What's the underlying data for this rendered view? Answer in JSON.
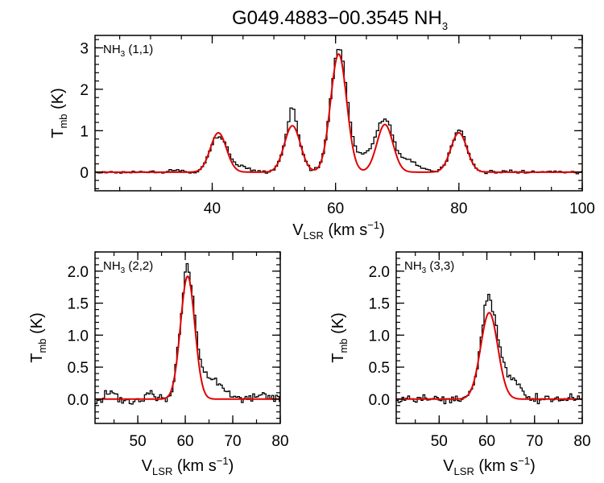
{
  "chart_data": {
    "title": {
      "main": "G049.4883−00.3545 NH",
      "sub": "3"
    },
    "colors": {
      "observed": "#000000",
      "model": "#e00000",
      "axis": "#000000"
    },
    "panels": [
      {
        "id": "p11",
        "type": "line",
        "label": {
          "pre": "NH",
          "sub": "3",
          "post": " (1,1)"
        },
        "xlim": [
          21,
          100
        ],
        "ylim": [
          -0.45,
          3.3
        ],
        "xticks": [
          40,
          60,
          80,
          100
        ],
        "xtick_labels": [
          "40",
          "60",
          "80",
          "100"
        ],
        "yticks": [
          0,
          1,
          2,
          3
        ],
        "ytick_labels": [
          "0",
          "1",
          "2",
          "3"
        ],
        "xlabel": {
          "pre": "V",
          "sub": "LSR",
          "post": " (km s",
          "sup": "−1",
          "end": ")"
        },
        "ylabel": {
          "pre": "T",
          "sub": "mb",
          "post": " (K)"
        },
        "model_components": [
          {
            "center": 41.0,
            "amplitude": 0.95,
            "sigma": 1.3
          },
          {
            "center": 53.0,
            "amplitude": 1.12,
            "sigma": 1.3
          },
          {
            "center": 60.5,
            "amplitude": 2.85,
            "sigma": 1.3
          },
          {
            "center": 68.0,
            "amplitude": 1.15,
            "sigma": 1.3
          },
          {
            "center": 80.0,
            "amplitude": 0.95,
            "sigma": 1.3
          }
        ],
        "observed_extra": [
          {
            "center": 53.0,
            "amplitude": 0.45,
            "sigma": 0.5
          },
          {
            "center": 61.0,
            "amplitude": 0.12,
            "sigma": 0.8
          },
          {
            "center": 64.8,
            "amplitude": 0.38,
            "sigma": 2.0
          },
          {
            "center": 71.5,
            "amplitude": 0.28,
            "sigma": 1.8
          },
          {
            "center": 44.5,
            "amplitude": 0.15,
            "sigma": 1.4
          },
          {
            "center": 34.0,
            "amplitude": 0.06,
            "sigma": 0.7
          },
          {
            "center": 40.8,
            "amplitude": -0.1,
            "sigma": 0.5
          },
          {
            "center": 80.3,
            "amplitude": 0.06,
            "sigma": 0.5
          }
        ],
        "channel_width": 0.4,
        "noise": 0.025
      },
      {
        "id": "p22",
        "type": "line",
        "label": {
          "pre": "NH",
          "sub": "3",
          "post": " (2,2)"
        },
        "xlim": [
          41,
          80
        ],
        "ylim": [
          -0.38,
          2.3
        ],
        "xticks": [
          50,
          60,
          70,
          80
        ],
        "xtick_labels": [
          "50",
          "60",
          "70",
          "80"
        ],
        "yticks": [
          0,
          0.5,
          1.0,
          1.5,
          2.0
        ],
        "ytick_labels": [
          "0.0",
          "0.5",
          "1.0",
          "1.5",
          "2.0"
        ],
        "xlabel": {
          "pre": "V",
          "sub": "LSR",
          "post": " (km s",
          "sup": "−1",
          "end": ")"
        },
        "ylabel": {
          "pre": "T",
          "sub": "mb",
          "post": " (K)"
        },
        "model_components": [
          {
            "center": 60.5,
            "amplitude": 1.92,
            "sigma": 1.5
          }
        ],
        "observed_extra": [
          {
            "center": 60.3,
            "amplitude": 0.12,
            "sigma": 0.6
          },
          {
            "center": 65.0,
            "amplitude": 0.32,
            "sigma": 2.4
          },
          {
            "center": 44.0,
            "amplitude": 0.13,
            "sigma": 0.8
          },
          {
            "center": 52.5,
            "amplitude": 0.14,
            "sigma": 0.6
          },
          {
            "center": 76.5,
            "amplitude": 0.11,
            "sigma": 0.6
          }
        ],
        "channel_width": 0.4,
        "noise": 0.04
      },
      {
        "id": "p33",
        "type": "line",
        "label": {
          "pre": "NH",
          "sub": "3",
          "post": " (3,3)"
        },
        "xlim": [
          41,
          80
        ],
        "ylim": [
          -0.38,
          2.3
        ],
        "xticks": [
          50,
          60,
          70,
          80
        ],
        "xtick_labels": [
          "50",
          "60",
          "70",
          "80"
        ],
        "yticks": [
          0,
          0.5,
          1.0,
          1.5,
          2.0
        ],
        "ytick_labels": [
          "0.0",
          "0.5",
          "1.0",
          "1.5",
          "2.0"
        ],
        "xlabel": {
          "pre": "V",
          "sub": "LSR",
          "post": " (km s",
          "sup": "−1",
          "end": ")"
        },
        "ylabel": {
          "pre": "T",
          "sub": "mb",
          "post": " (K)"
        },
        "model_components": [
          {
            "center": 60.5,
            "amplitude": 1.35,
            "sigma": 1.8
          }
        ],
        "observed_extra": [
          {
            "center": 60.0,
            "amplitude": 0.22,
            "sigma": 0.8
          },
          {
            "center": 64.5,
            "amplitude": 0.3,
            "sigma": 2.2
          }
        ],
        "channel_width": 0.4,
        "noise": 0.04
      }
    ]
  }
}
